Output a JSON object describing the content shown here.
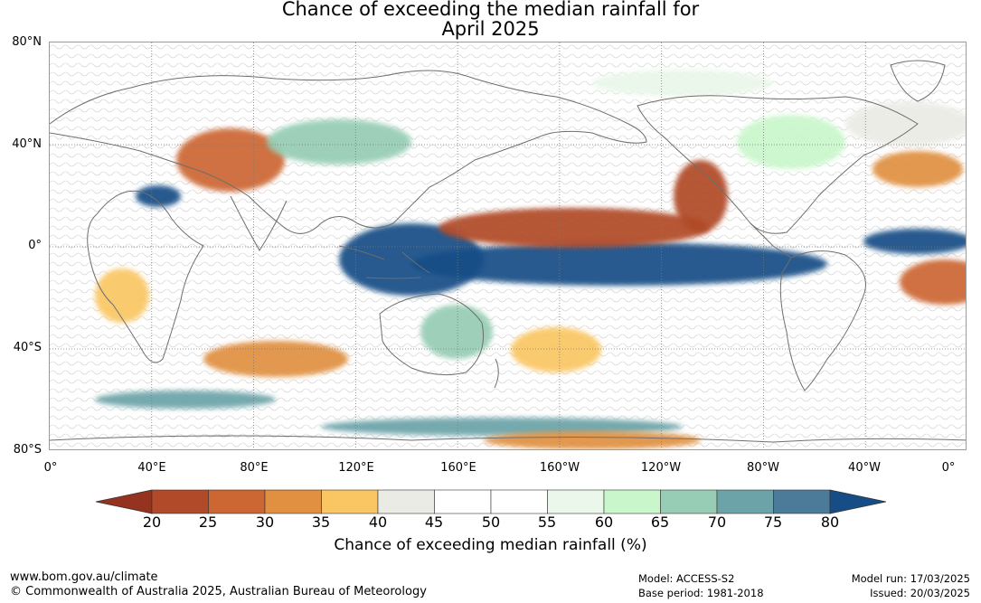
{
  "title": {
    "line1": "Chance of exceeding the median rainfall for",
    "line2": "April 2025"
  },
  "map": {
    "lat_labels": [
      "80°N",
      "40°N",
      "0°",
      "40°S",
      "80°S"
    ],
    "lon_labels": [
      "0°",
      "40°E",
      "80°E",
      "120°E",
      "160°E",
      "160°W",
      "120°W",
      "80°W",
      "40°W",
      "0°"
    ],
    "projection": "equirectangular, 0° to 360° longitude, 80°S to 80°N",
    "gridlines": true,
    "coastlines": true
  },
  "colorbar": {
    "ticks": [
      "20",
      "25",
      "30",
      "35",
      "40",
      "45",
      "50",
      "55",
      "60",
      "65",
      "70",
      "75",
      "80"
    ],
    "colors": [
      "#963320",
      "#b04a28",
      "#cc6632",
      "#e09040",
      "#fac664",
      "#ebebe6",
      "#ffffff",
      "#ffffff",
      "#eaf7ea",
      "#c9f7cb",
      "#96cdb4",
      "#6ba3a8",
      "#4b7b98",
      "#164d86"
    ],
    "extend": "both",
    "label": "Chance of exceeding median rainfall (%)"
  },
  "footer": {
    "website": "www.bom.gov.au/climate",
    "copyright": "© Commonwealth of Australia 2025, Australian Bureau of Meteorology",
    "model": "Model: ACCESS-S2",
    "base_period": "Base period: 1981-2018",
    "model_run": "Model run: 17/03/2025",
    "issued": "Issued: 20/03/2025"
  }
}
